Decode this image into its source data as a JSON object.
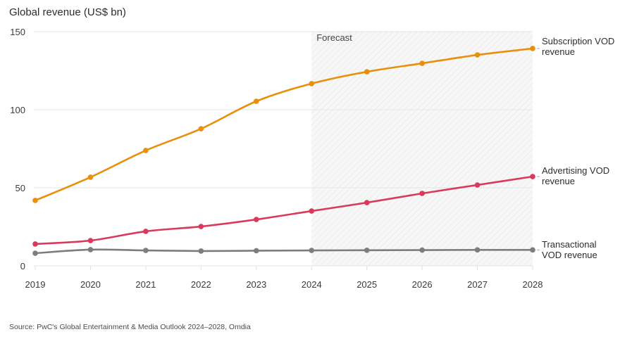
{
  "chart_data": {
    "type": "line",
    "title": "Global revenue (US$ bn)",
    "xlabel": "",
    "ylabel": "Global revenue (US$ bn)",
    "x": [
      "2019",
      "2020",
      "2021",
      "2022",
      "2023",
      "2024",
      "2025",
      "2026",
      "2027",
      "2028"
    ],
    "ylim": [
      0,
      150
    ],
    "yticks": [
      0,
      50,
      100,
      150
    ],
    "grid": true,
    "forecast": {
      "label": "Forecast",
      "from": "2024",
      "to": "2028"
    },
    "series": [
      {
        "name": "Subscription VOD revenue",
        "label_lines": [
          "Subscription VOD",
          "revenue"
        ],
        "color": "#e8900c",
        "values": [
          41.9,
          56.8,
          73.9,
          87.8,
          105.4,
          116.7,
          124.3,
          129.7,
          135.1,
          139.2
        ]
      },
      {
        "name": "Advertising VOD revenue",
        "label_lines": [
          "Advertising VOD",
          "revenue"
        ],
        "color": "#d93a5b",
        "values": [
          14.0,
          16.2,
          22.1,
          25.2,
          29.7,
          35.1,
          40.5,
          46.4,
          51.8,
          57.2
        ]
      },
      {
        "name": "Transactional VOD revenue",
        "label_lines": [
          "Transactional",
          "VOD revenue"
        ],
        "color": "#7d7d7d",
        "values": [
          8.1,
          10.4,
          9.9,
          9.5,
          9.7,
          9.9,
          10.0,
          10.1,
          10.2,
          10.2
        ]
      }
    ],
    "legend": "right-inline"
  },
  "source": "Source: PwC's Global Entertainment & Media Outlook 2024–2028, Omdia"
}
